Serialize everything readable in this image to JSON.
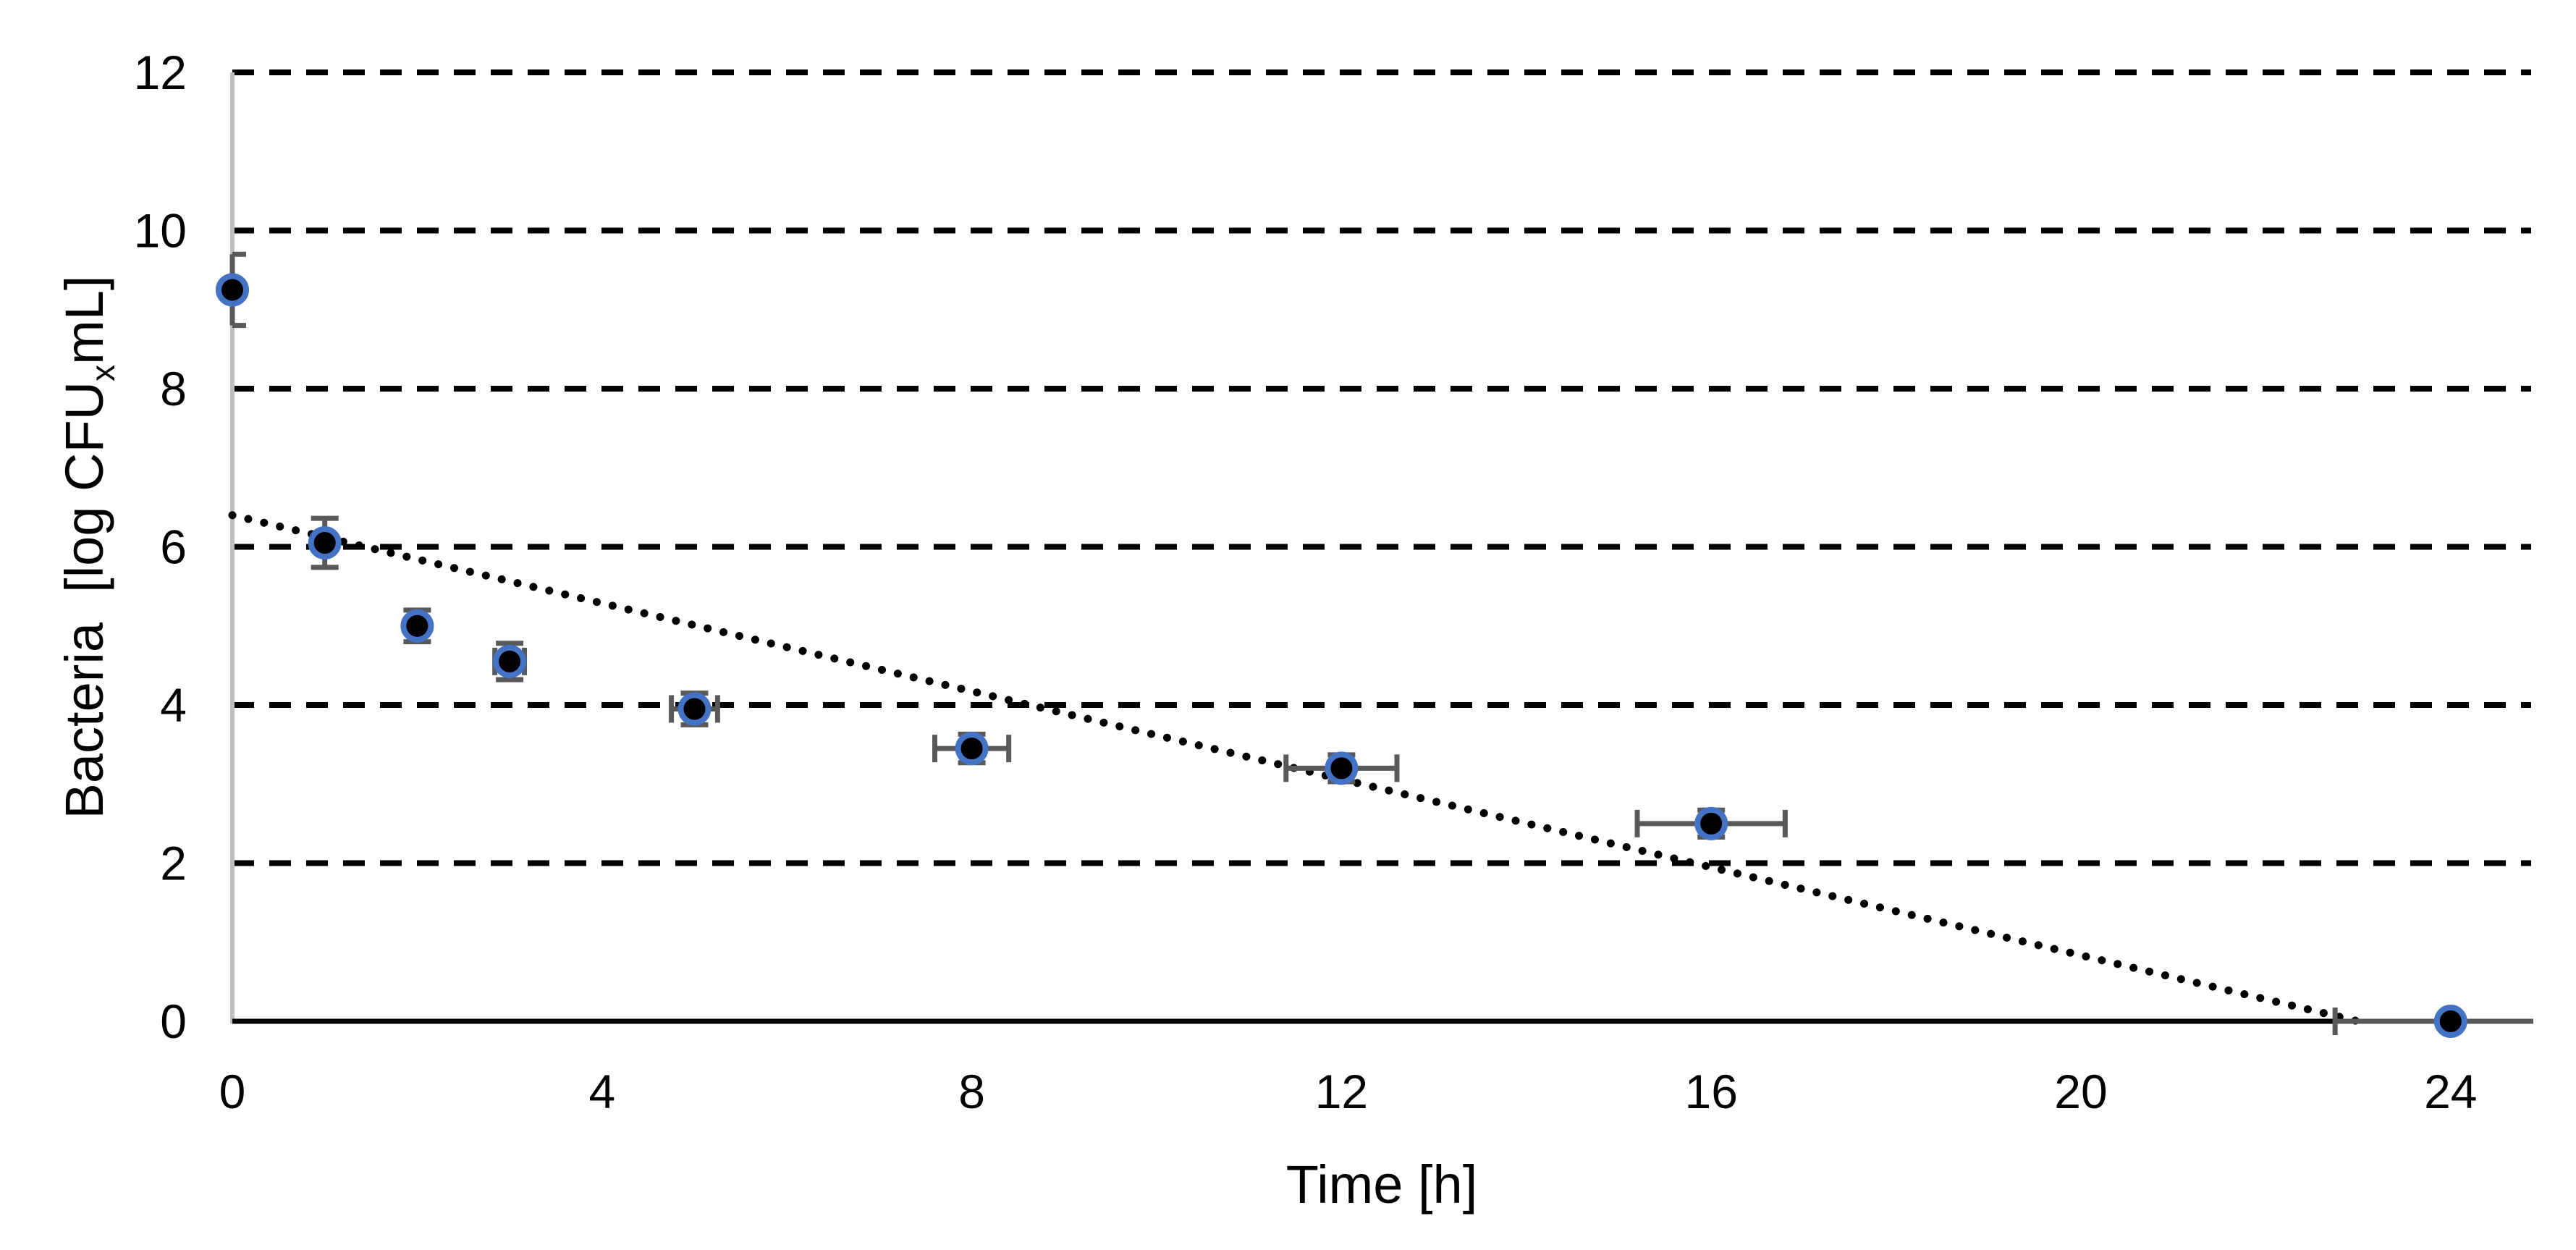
{
  "figure": {
    "background": "#FFFFFF",
    "x_axis": {
      "title": "Time [h]",
      "tick_labels": [
        "0",
        "4",
        "8",
        "12",
        "16",
        "20",
        "24"
      ]
    },
    "y_axis": {
      "title_prefix": "Bacteria  [log CFU",
      "title_subscript": "x",
      "title_suffix": "mL]",
      "tick_labels": [
        "0",
        "2",
        "4",
        "6",
        "8",
        "10",
        "12"
      ]
    }
  },
  "chart_data": {
    "type": "scatter",
    "title": "",
    "xlabel": "Time [h]",
    "ylabel": "Bacteria [log CFUxmL]",
    "xlim": [
      0,
      24.9
    ],
    "ylim": [
      0,
      12
    ],
    "x_ticks": [
      0,
      4,
      8,
      12,
      16,
      20,
      24
    ],
    "y_ticks": [
      0,
      2,
      4,
      6,
      8,
      10,
      12
    ],
    "grid": "horizontal-dashed-black",
    "legend": "none",
    "series": [
      {
        "name": "bacteria-counts",
        "marker": "black-circle-with-blue-ring",
        "points": [
          {
            "x": 0,
            "y": 9.25,
            "yerr": 0.45
          },
          {
            "x": 1,
            "y": 6.05,
            "yerr": 0.31
          },
          {
            "x": 2,
            "y": 5.0,
            "yerr": 0.2
          },
          {
            "x": 3,
            "y": 4.55,
            "xerr": 0.16,
            "yerr": 0.23
          },
          {
            "x": 5,
            "y": 3.95,
            "xerr": 0.25,
            "yerr": 0.2
          },
          {
            "x": 8,
            "y": 3.45,
            "xerr": 0.4,
            "yerr": 0.18
          },
          {
            "x": 12,
            "y": 3.2,
            "xerr": 0.6,
            "yerr": 0.17
          },
          {
            "x": 16,
            "y": 2.5,
            "xerr": 0.8,
            "yerr": 0.17
          },
          {
            "x": 24,
            "y": 0,
            "xerr": 1.25
          }
        ]
      }
    ],
    "trendline": {
      "style": "dotted",
      "from": {
        "x": 0,
        "y": 6.4
      },
      "to": {
        "x": 23,
        "y": 0
      }
    },
    "colors": {
      "marker_fill": "#000000",
      "marker_ring": "#4472C4",
      "error_bar": "#595959",
      "gridline": "#000000",
      "x_axis_line": "#000000",
      "y_axis_line": "#BFBFBF",
      "trendline": "#000000",
      "text": "#000000"
    }
  }
}
